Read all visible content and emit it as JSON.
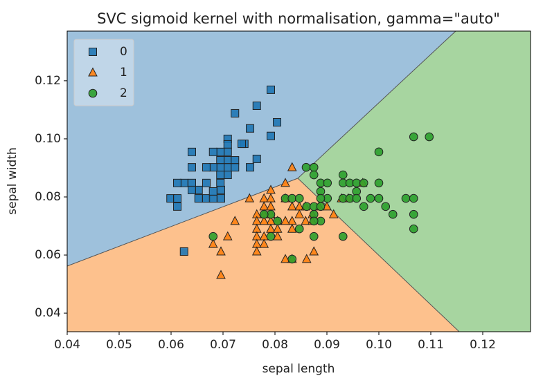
{
  "chart_data": {
    "type": "scatter",
    "title": "SVC sigmoid kernel with normalisation, gamma=\"auto\"",
    "x_label": "sepal length",
    "y_label": "sepal width",
    "xlim": [
      0.04,
      0.1292
    ],
    "ylim": [
      0.0336,
      0.1371
    ],
    "xticks": [
      0.04,
      0.05,
      0.06,
      0.07,
      0.08,
      0.09,
      {
        "value": 0.1,
        "label": "0.10"
      },
      0.11,
      0.12
    ],
    "yticks": [
      0.04,
      0.06,
      0.08,
      {
        "value": 0.1,
        "label": "0.10"
      },
      0.12
    ],
    "legend": "upper left",
    "series": [
      {
        "name": "0",
        "color": "#1f77b4",
        "marker": "square",
        "x": [
          0.0792,
          0.0804,
          0.0765,
          0.0752,
          0.0792,
          0.0723,
          0.0752,
          0.0765,
          0.0741,
          0.0736,
          0.0709,
          0.0709,
          0.0709,
          0.0709,
          0.0709,
          0.0709,
          0.0695,
          0.0695,
          0.0695,
          0.0695,
          0.0695,
          0.0681,
          0.0681,
          0.0723,
          0.0723,
          0.0668,
          0.064,
          0.064,
          0.0668,
          0.0653,
          0.0653,
          0.0668,
          0.0681,
          0.0696,
          0.064,
          0.0625,
          0.0612,
          0.0599,
          0.0612,
          0.0612,
          0.0625,
          0.064,
          0.0681,
          0.0696
        ],
        "y": [
          0.1169,
          0.1057,
          0.1114,
          0.1036,
          0.101,
          0.1088,
          0.0902,
          0.0931,
          0.0983,
          0.0983,
          0.1,
          0.0981,
          0.0955,
          0.0926,
          0.0902,
          0.0876,
          0.0955,
          0.0926,
          0.0902,
          0.0876,
          0.0848,
          0.0955,
          0.0902,
          0.0926,
          0.0902,
          0.0902,
          0.0955,
          0.0902,
          0.0848,
          0.0824,
          0.0795,
          0.0795,
          0.0795,
          0.0795,
          0.0848,
          0.0848,
          0.0848,
          0.0795,
          0.0795,
          0.0767,
          0.0612,
          0.0824,
          0.0819,
          0.0824
        ]
      },
      {
        "name": "1",
        "color": "#ff7f0e",
        "marker": "triangle",
        "x": [
          0.0833,
          0.082,
          0.0792,
          0.0751,
          0.0779,
          0.0792,
          0.0779,
          0.0792,
          0.0765,
          0.0779,
          0.082,
          0.0833,
          0.0847,
          0.0859,
          0.0872,
          0.0885,
          0.09,
          0.0913,
          0.0928,
          0.0941,
          0.0969,
          0.0847,
          0.0859,
          0.0872,
          0.0833,
          0.082,
          0.0805,
          0.0792,
          0.0779,
          0.0765,
          0.0792,
          0.0765,
          0.0779,
          0.0765,
          0.0765,
          0.0779,
          0.0765,
          0.0805,
          0.0723,
          0.0709,
          0.0681,
          0.0696,
          0.0696,
          0.082,
          0.0833,
          0.0861,
          0.0875,
          0.0792,
          0.0805,
          0.0833
        ],
        "y": [
          0.0902,
          0.0848,
          0.0824,
          0.0795,
          0.0795,
          0.0795,
          0.0767,
          0.0767,
          0.074,
          0.074,
          0.0795,
          0.0767,
          0.0767,
          0.0767,
          0.074,
          0.0767,
          0.0767,
          0.074,
          0.0795,
          0.0795,
          0.0848,
          0.074,
          0.0717,
          0.0717,
          0.0717,
          0.0717,
          0.0717,
          0.0717,
          0.0717,
          0.0717,
          0.069,
          0.069,
          0.0664,
          0.0664,
          0.0638,
          0.0638,
          0.0612,
          0.0664,
          0.0717,
          0.0664,
          0.0638,
          0.0612,
          0.0531,
          0.0586,
          0.0586,
          0.0586,
          0.0612,
          0.074,
          0.069,
          0.069
        ]
      },
      {
        "name": "2",
        "color": "#2ca02c",
        "marker": "circle",
        "x": [
          0.1067,
          0.1097,
          0.1,
          0.086,
          0.0875,
          0.0875,
          0.0888,
          0.0901,
          0.0888,
          0.0931,
          0.0931,
          0.0944,
          0.0957,
          0.0971,
          0.1,
          0.0957,
          0.0931,
          0.0944,
          0.0957,
          0.0901,
          0.0888,
          0.0984,
          0.1,
          0.1052,
          0.1067,
          0.1067,
          0.1067,
          0.1013,
          0.1027,
          0.0971,
          0.082,
          0.0833,
          0.0847,
          0.0792,
          0.0805,
          0.0861,
          0.0875,
          0.0888,
          0.0875,
          0.0888,
          0.0875,
          0.0847,
          0.0875,
          0.0931,
          0.0833,
          0.0681,
          0.0779,
          0.0792
        ],
        "y": [
          0.1007,
          0.1007,
          0.0955,
          0.0902,
          0.0902,
          0.0876,
          0.0848,
          0.0848,
          0.0819,
          0.0876,
          0.0848,
          0.0848,
          0.0848,
          0.0848,
          0.0848,
          0.0819,
          0.0795,
          0.0795,
          0.0795,
          0.0795,
          0.0795,
          0.0795,
          0.0795,
          0.0795,
          0.0795,
          0.074,
          0.069,
          0.0767,
          0.074,
          0.0767,
          0.0795,
          0.0795,
          0.0795,
          0.074,
          0.0717,
          0.0767,
          0.0767,
          0.0767,
          0.074,
          0.0717,
          0.0717,
          0.069,
          0.0664,
          0.0664,
          0.0586,
          0.0664,
          0.074,
          0.0664
        ]
      }
    ]
  }
}
